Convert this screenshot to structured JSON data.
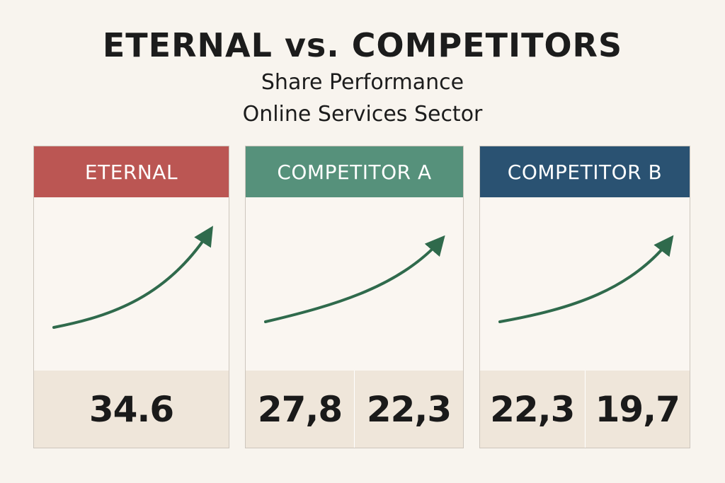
{
  "title": "ETERNAL vs. COMPETITORS",
  "subtitle_1": "Share Performance",
  "subtitle_2": "Online Services Sector",
  "colors": {
    "background": "#f8f4ee",
    "eternal_header": "#bb5653",
    "competitor_a_header": "#56917b",
    "competitor_b_header": "#2a5272",
    "trend_line": "#2f6a4c",
    "value_row": "#efe6da"
  },
  "chart_data": [
    {
      "type": "line",
      "title": "ETERNAL",
      "trend": "up",
      "value_labels": [
        "34.6"
      ]
    },
    {
      "type": "line",
      "title": "COMPETITOR A",
      "trend": "up",
      "value_labels": [
        "27,8",
        "22,3"
      ]
    },
    {
      "type": "line",
      "title": "COMPETITOR B",
      "trend": "up",
      "value_labels": [
        "22,3",
        "19,7"
      ]
    }
  ]
}
